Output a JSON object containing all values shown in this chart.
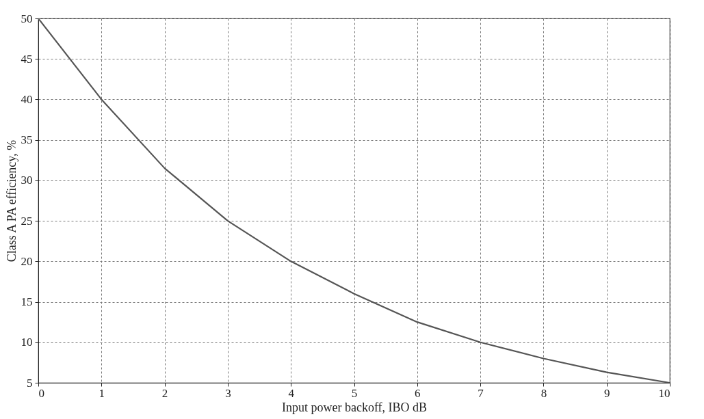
{
  "chart_data": {
    "type": "line",
    "xlabel": "Input power backoff, IBO dB",
    "ylabel": "Class  A  PA  efficiency, %",
    "x": [
      0,
      1,
      2,
      3,
      4,
      5,
      6,
      7,
      8,
      9,
      10
    ],
    "series": [
      {
        "color": "#555555",
        "values": [
          50,
          40,
          31.5,
          25,
          20,
          16,
          12.5,
          10,
          8,
          6.3,
          5
        ]
      }
    ],
    "xlim": [
      0,
      10
    ],
    "ylim": [
      5,
      50
    ],
    "xticks": [
      0,
      1,
      2,
      3,
      4,
      5,
      6,
      7,
      8,
      9,
      10
    ],
    "yticks": [
      5,
      10,
      15,
      20,
      25,
      30,
      35,
      40,
      45,
      50
    ],
    "grid": true,
    "marker": "none",
    "line_style": "solid"
  }
}
